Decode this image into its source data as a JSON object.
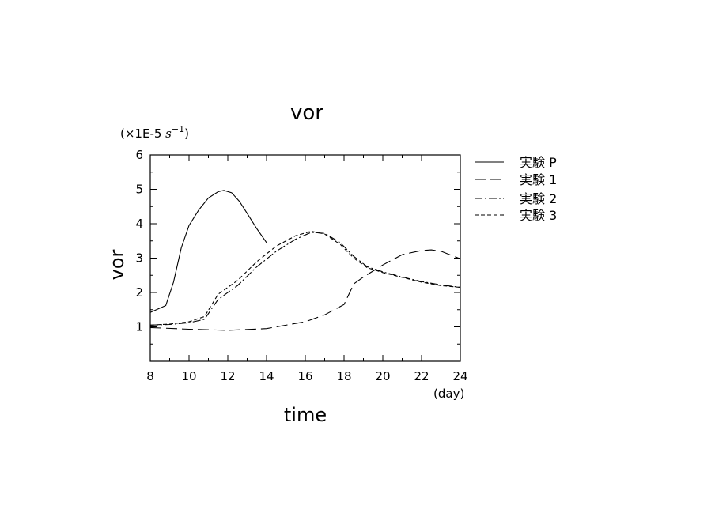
{
  "chart_data": {
    "type": "line",
    "title": "vor",
    "xlabel": "time",
    "ylabel": "vor",
    "x_unit": "(day)",
    "y_unit_prefix": "(×1E-5 ",
    "y_unit_math": "s",
    "y_unit_exp": "−1",
    "y_unit_suffix": ")",
    "xlim": [
      8,
      24
    ],
    "ylim": [
      0,
      6
    ],
    "xticks": [
      8,
      10,
      12,
      14,
      16,
      18,
      20,
      22,
      24
    ],
    "yticks": [
      1,
      2,
      3,
      4,
      5,
      6
    ],
    "grid": false,
    "legend_position": "right",
    "series": [
      {
        "name": "実験 P",
        "dash": "",
        "x": [
          8,
          8.8,
          9.2,
          9.6,
          10,
          10.5,
          11,
          11.5,
          11.8,
          12.2,
          12.6,
          13,
          13.5,
          14
        ],
        "y": [
          1.42,
          1.62,
          2.3,
          3.3,
          3.95,
          4.4,
          4.75,
          4.93,
          4.97,
          4.9,
          4.65,
          4.3,
          3.85,
          3.45
        ]
      },
      {
        "name": "実験 1",
        "dash": "14 6",
        "x": [
          8,
          10,
          12,
          14,
          16,
          17,
          18,
          18.5,
          19,
          20,
          21,
          22,
          22.5,
          23,
          24
        ],
        "y": [
          0.98,
          0.93,
          0.9,
          0.95,
          1.15,
          1.35,
          1.65,
          2.25,
          2.45,
          2.8,
          3.1,
          3.22,
          3.24,
          3.2,
          2.98
        ]
      },
      {
        "name": "実験 2",
        "dash": "10 3 2 3",
        "x": [
          8,
          9,
          10,
          10.8,
          11.5,
          12.5,
          13.5,
          14.5,
          15.5,
          16.3,
          17,
          17.8,
          18.5,
          19.2,
          20,
          21,
          22,
          23,
          24
        ],
        "y": [
          1.05,
          1.07,
          1.12,
          1.22,
          1.8,
          2.2,
          2.75,
          3.2,
          3.55,
          3.75,
          3.72,
          3.45,
          3.05,
          2.75,
          2.6,
          2.45,
          2.32,
          2.22,
          2.15
        ]
      },
      {
        "name": "実験 3",
        "dash": "5 3",
        "x": [
          8,
          9,
          10,
          10.8,
          11.5,
          12.5,
          13.5,
          14.5,
          15.5,
          16.3,
          17,
          17.8,
          18.5,
          19.2,
          20,
          21,
          22,
          23,
          24
        ],
        "y": [
          1.05,
          1.08,
          1.15,
          1.3,
          1.95,
          2.35,
          2.9,
          3.35,
          3.65,
          3.78,
          3.7,
          3.4,
          3.0,
          2.72,
          2.58,
          2.44,
          2.3,
          2.2,
          2.15
        ]
      }
    ]
  }
}
